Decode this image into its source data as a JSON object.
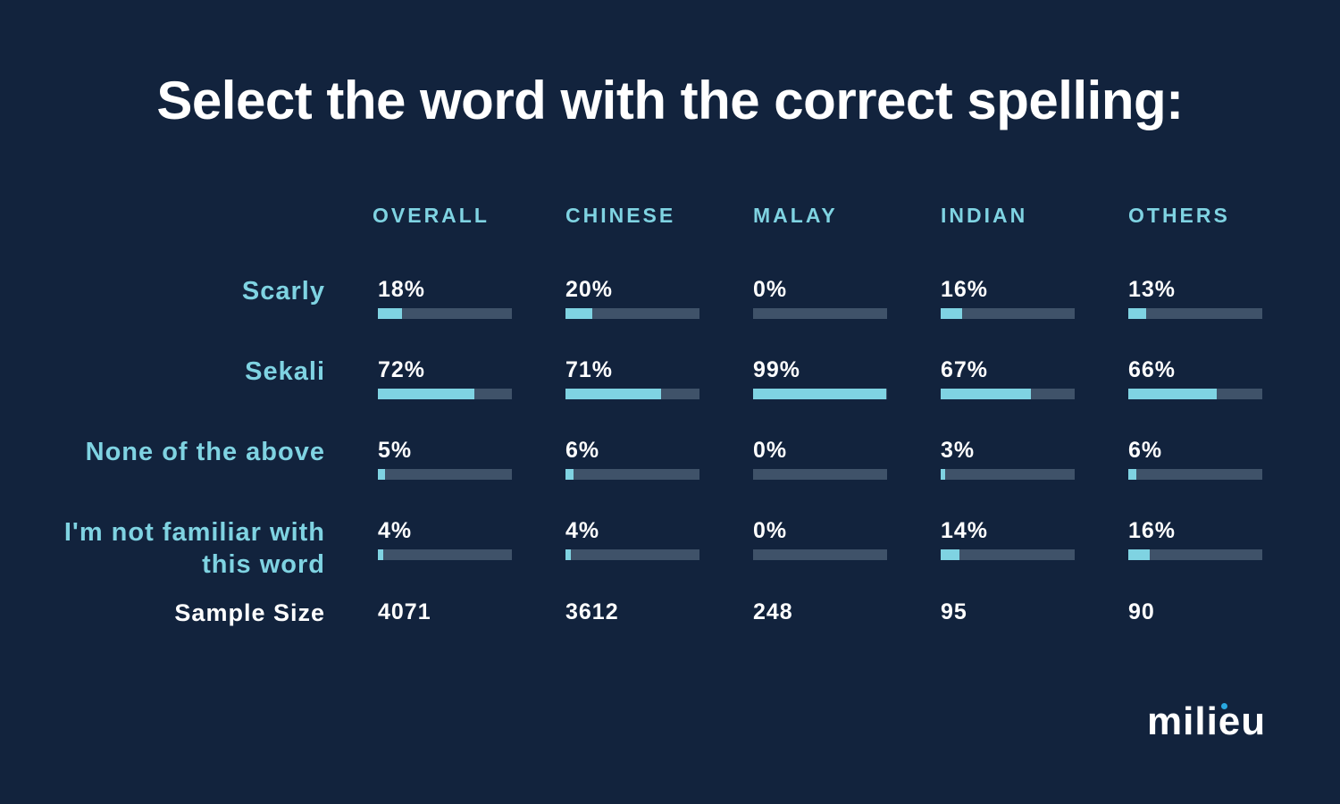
{
  "title": "Select the word with the correct spelling:",
  "logo": "milieu",
  "colors": {
    "background": "#12233d",
    "accent": "#7fd3e2",
    "track": "#3f5269",
    "logo_dot": "#29a8e0"
  },
  "chart_data": {
    "type": "table",
    "title": "Select the word with the correct spelling:",
    "columns": [
      "OVERALL",
      "CHINESE",
      "MALAY",
      "INDIAN",
      "OTHERS"
    ],
    "rows": [
      {
        "label": "Scarly",
        "values": [
          18,
          20,
          0,
          16,
          13
        ],
        "display": [
          "18%",
          "20%",
          "0%",
          "16%",
          "13%"
        ]
      },
      {
        "label": "Sekali",
        "values": [
          72,
          71,
          99,
          67,
          66
        ],
        "display": [
          "72%",
          "71%",
          "99%",
          "67%",
          "66%"
        ]
      },
      {
        "label": "None of the above",
        "values": [
          5,
          6,
          0,
          3,
          6
        ],
        "display": [
          "5%",
          "6%",
          "0%",
          "3%",
          "6%"
        ]
      },
      {
        "label": "I'm not familiar with this word",
        "values": [
          4,
          4,
          0,
          14,
          16
        ],
        "display": [
          "4%",
          "4%",
          "0%",
          "14%",
          "16%"
        ]
      }
    ],
    "sample_size": {
      "label": "Sample Size",
      "values": [
        "4071",
        "3612",
        "248",
        "95",
        "90"
      ]
    },
    "value_unit": "%",
    "bar_max": 100
  }
}
